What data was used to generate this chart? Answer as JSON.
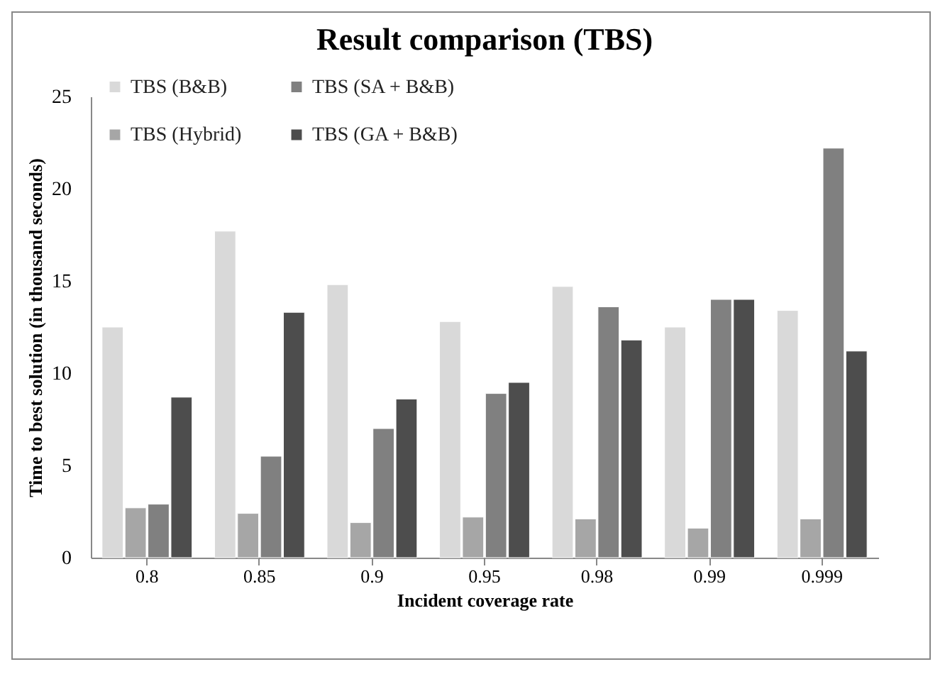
{
  "chart_data": {
    "type": "bar",
    "title": "Result comparison (TBS)",
    "xlabel": "Incident coverage rate",
    "ylabel": "Time to best solution (in thousand seconds)",
    "categories": [
      "0.8",
      "0.85",
      "0.9",
      "0.95",
      "0.98",
      "0.99",
      "0.999"
    ],
    "series": [
      {
        "name": "TBS (B&B)",
        "color": "#d9d9d9",
        "values": [
          12.5,
          17.7,
          14.8,
          12.8,
          14.7,
          12.5,
          13.4
        ]
      },
      {
        "name": "TBS (Hybrid)",
        "color": "#a6a6a6",
        "values": [
          2.7,
          2.4,
          1.9,
          2.2,
          2.1,
          1.6,
          2.1
        ]
      },
      {
        "name": "TBS (SA + B&B)",
        "color": "#808080",
        "values": [
          2.9,
          5.5,
          7.0,
          8.9,
          13.6,
          14.0,
          22.2
        ]
      },
      {
        "name": "TBS (GA + B&B)",
        "color": "#4d4d4d",
        "values": [
          8.7,
          13.3,
          8.6,
          9.5,
          11.8,
          14.0,
          11.2
        ]
      }
    ],
    "ylim": [
      0,
      25
    ],
    "yticks": [
      0,
      5,
      10,
      15,
      20,
      25
    ],
    "grid": false,
    "legend": "top left"
  }
}
